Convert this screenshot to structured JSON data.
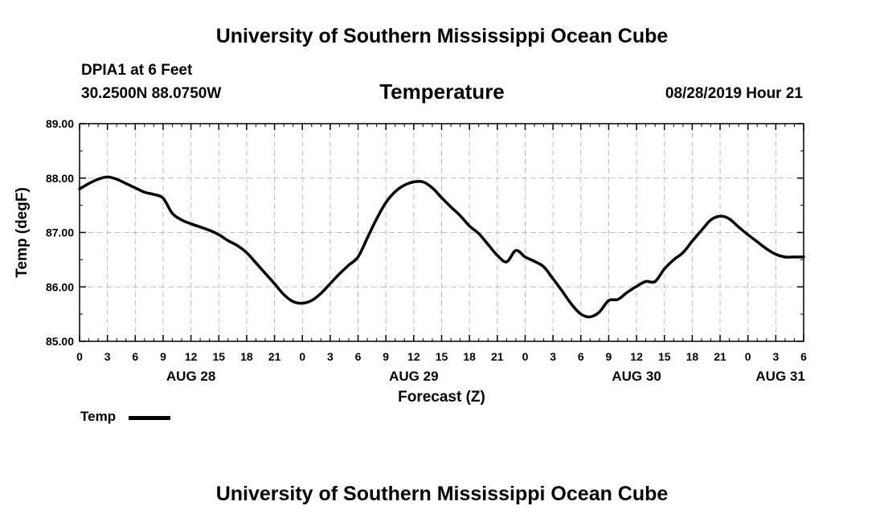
{
  "header": {
    "title": "University of Southern Mississippi Ocean Cube",
    "station": "DPIA1 at 6 Feet",
    "coords": "30.2500N 88.0750W",
    "chart_name": "Temperature",
    "datetime": "08/28/2019 Hour 21"
  },
  "legend": {
    "label": "Temp"
  },
  "footer": {
    "title": "University of Southern Mississippi Ocean Cube"
  },
  "chart_data": {
    "type": "line",
    "title": "Temperature",
    "xlabel": "Forecast (Z)",
    "ylabel": "Temp (degF)",
    "xlim": [
      0,
      78
    ],
    "ylim": [
      85.0,
      89.0
    ],
    "y_ticks": [
      "85.00",
      "86.00",
      "87.00",
      "88.00",
      "89.00"
    ],
    "x_tick_labels": [
      "0",
      "3",
      "6",
      "9",
      "12",
      "15",
      "18",
      "21",
      "0",
      "3",
      "6",
      "9",
      "12",
      "15",
      "18",
      "21",
      "0",
      "3",
      "6",
      "9",
      "12",
      "15",
      "18",
      "21",
      "0",
      "3",
      "6"
    ],
    "date_labels": [
      {
        "label": "AUG 28",
        "hour": 12
      },
      {
        "label": "AUG 29",
        "hour": 36
      },
      {
        "label": "AUG 30",
        "hour": 60
      },
      {
        "label": "AUG 31",
        "hour": 75.5
      }
    ],
    "grid": true,
    "series": [
      {
        "name": "Temp",
        "color": "#000000",
        "x": [
          0,
          1,
          2,
          3,
          4,
          5,
          6,
          7,
          8,
          9,
          10,
          11,
          12,
          13,
          14,
          15,
          16,
          17,
          18,
          19,
          20,
          21,
          22,
          23,
          24,
          25,
          26,
          27,
          28,
          29,
          30,
          31,
          32,
          33,
          34,
          35,
          36,
          37,
          38,
          39,
          40,
          41,
          42,
          43,
          44,
          45,
          46,
          47,
          48,
          49,
          50,
          51,
          52,
          53,
          54,
          55,
          56,
          57,
          58,
          59,
          60,
          61,
          62,
          63,
          64,
          65,
          66,
          67,
          68,
          69,
          70,
          71,
          72,
          73,
          74,
          75,
          76,
          77,
          78
        ],
        "values": [
          87.8,
          87.9,
          87.98,
          88.02,
          87.98,
          87.9,
          87.82,
          87.74,
          87.7,
          87.63,
          87.35,
          87.23,
          87.16,
          87.1,
          87.04,
          86.96,
          86.85,
          86.76,
          86.63,
          86.44,
          86.25,
          86.06,
          85.86,
          85.73,
          85.7,
          85.75,
          85.88,
          86.06,
          86.24,
          86.4,
          86.55,
          86.9,
          87.25,
          87.55,
          87.75,
          87.87,
          87.93,
          87.93,
          87.82,
          87.64,
          87.47,
          87.31,
          87.12,
          86.98,
          86.78,
          86.58,
          86.46,
          86.67,
          86.55,
          86.47,
          86.37,
          86.15,
          85.92,
          85.68,
          85.5,
          85.45,
          85.54,
          85.75,
          85.77,
          85.9,
          86.01,
          86.1,
          86.1,
          86.33,
          86.5,
          86.63,
          86.84,
          87.04,
          87.23,
          87.3,
          87.25,
          87.1,
          86.96,
          86.83,
          86.7,
          86.6,
          86.55,
          86.55,
          86.55
        ]
      }
    ]
  }
}
